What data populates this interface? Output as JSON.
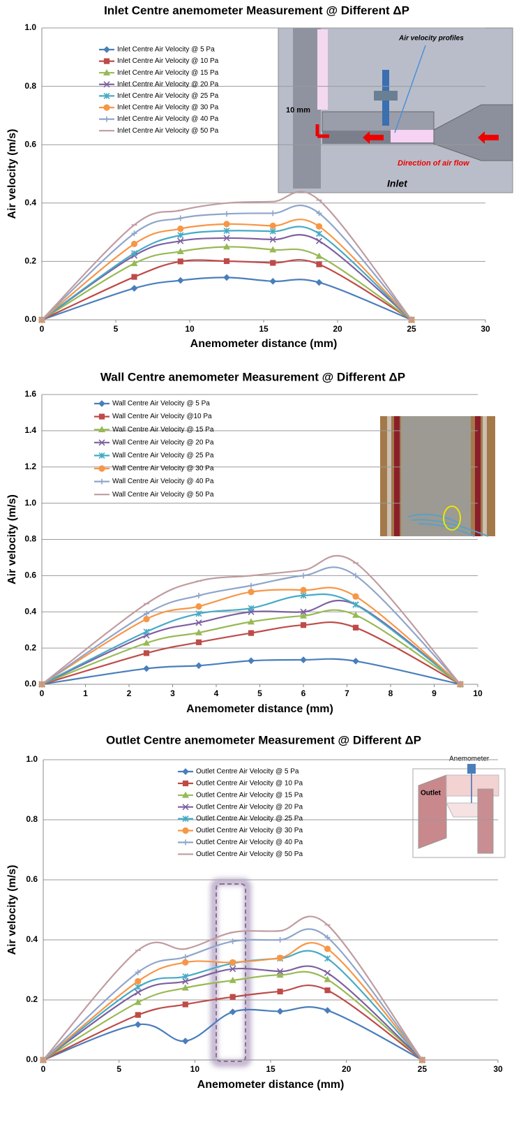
{
  "chart_data": [
    {
      "type": "line",
      "title": "Inlet Centre anemometer Measurement @ Different ΔP",
      "x_label": "Anemometer distance (mm)",
      "y_label": "Air velocity (m/s)",
      "x": [
        0,
        6.25,
        9.375,
        12.5,
        15.625,
        18.75,
        25
      ],
      "xlim": [
        0,
        30
      ],
      "xticks": [
        0,
        5,
        10,
        15,
        20,
        25,
        30
      ],
      "ylim": [
        0,
        1
      ],
      "yticks": [
        {
          "value": 0,
          "label": "0.0"
        },
        0.2,
        0.4,
        0.6,
        0.8,
        {
          "value": 1,
          "label": "1.0"
        }
      ],
      "grid": true,
      "legend": "upper left",
      "annotations": [
        "Air velocity profiles",
        "10 mm",
        "Direction of air flow",
        "Inlet"
      ],
      "series": [
        {
          "name": "Inlet Centre Air Velocity @ 5 Pa",
          "color": "#4a7ebb",
          "marker": "diamond",
          "values": [
            0,
            0.108,
            0.135,
            0.145,
            0.132,
            0.128,
            0
          ]
        },
        {
          "name": "Inlet Centre Air Velocity @ 10 Pa",
          "color": "#be4b48",
          "marker": "square",
          "values": [
            0,
            0.147,
            0.2,
            0.201,
            0.195,
            0.19,
            0
          ]
        },
        {
          "name": "Inlet Centre Air Velocity @ 15 Pa",
          "color": "#98b954",
          "marker": "triangle",
          "values": [
            0,
            0.193,
            0.234,
            0.25,
            0.24,
            0.218,
            0
          ]
        },
        {
          "name": "Inlet Centre Air Velocity @ 20 Pa",
          "color": "#7d60a0",
          "marker": "x",
          "values": [
            0,
            0.22,
            0.27,
            0.28,
            0.275,
            0.27,
            0
          ]
        },
        {
          "name": "Inlet Centre Air Velocity @ 25 Pa",
          "color": "#46aac5",
          "marker": "star",
          "values": [
            0,
            0.228,
            0.29,
            0.305,
            0.303,
            0.295,
            0
          ]
        },
        {
          "name": "Inlet Centre Air Velocity @ 30 Pa",
          "color": "#f79646",
          "marker": "circle",
          "values": [
            0,
            0.26,
            0.312,
            0.328,
            0.322,
            0.32,
            0
          ]
        },
        {
          "name": "Inlet Centre Air Velocity @ 40 Pa",
          "color": "#8ea5cb",
          "marker": "plus",
          "values": [
            0,
            0.296,
            0.348,
            0.363,
            0.365,
            0.365,
            0
          ]
        },
        {
          "name": "Inlet Centre Air Velocity @ 50 Pa",
          "color": "#c09ca0",
          "marker": "dash",
          "values": [
            0,
            0.325,
            0.375,
            0.4,
            0.405,
            0.41,
            0
          ]
        }
      ]
    },
    {
      "type": "line",
      "title": "Wall Centre anemometer Measurement @ Different ΔP",
      "x_label": "Anemometer distance (mm)",
      "y_label": "Air velocity (m/s)",
      "x": [
        0,
        2.4,
        3.6,
        4.8,
        6,
        7.2,
        9.6
      ],
      "xlim": [
        0,
        10
      ],
      "xticks": [
        0,
        1,
        2,
        3,
        4,
        5,
        6,
        7,
        8,
        9,
        10
      ],
      "ylim": [
        0,
        1.6
      ],
      "yticks": [
        {
          "value": 0,
          "label": "0.0"
        },
        0.2,
        0.4,
        0.6,
        0.8,
        {
          "value": 1,
          "label": "1.0"
        },
        1.2,
        1.4,
        1.6
      ],
      "grid": true,
      "legend": "upper left",
      "series": [
        {
          "name": "Wall Centre Air Velocity @ 5 Pa",
          "color": "#4a7ebb",
          "marker": "diamond",
          "values": [
            0,
            0.087,
            0.103,
            0.13,
            0.135,
            0.128,
            0
          ]
        },
        {
          "name": "Wall Centre Air Velocity @10 Pa",
          "color": "#be4b48",
          "marker": "square",
          "values": [
            0,
            0.172,
            0.232,
            0.283,
            0.327,
            0.313,
            0
          ]
        },
        {
          "name": "Wall Centre Air Velocity @ 15 Pa",
          "color": "#98b954",
          "marker": "triangle",
          "values": [
            0,
            0.228,
            0.285,
            0.345,
            0.378,
            0.382,
            0
          ]
        },
        {
          "name": "Wall Centre Air Velocity @ 20 Pa",
          "color": "#7d60a0",
          "marker": "x",
          "values": [
            0,
            0.27,
            0.34,
            0.4,
            0.4,
            0.44,
            0
          ]
        },
        {
          "name": "Wall Centre Air Velocity @ 25 Pa",
          "color": "#46aac5",
          "marker": "star",
          "values": [
            0,
            0.29,
            0.39,
            0.42,
            0.49,
            0.44,
            0
          ]
        },
        {
          "name": "Wall Centre Air Velocity @ 30 Pa",
          "color": "#f79646",
          "marker": "circle",
          "values": [
            0,
            0.36,
            0.43,
            0.51,
            0.52,
            0.485,
            0
          ]
        },
        {
          "name": "Wall Centre Air Velocity @ 40 Pa",
          "color": "#8ea5cb",
          "marker": "plus",
          "values": [
            0,
            0.39,
            0.49,
            0.545,
            0.6,
            0.6,
            0
          ]
        },
        {
          "name": "Wall Centre Air Velocity @ 50 Pa",
          "color": "#c09ca0",
          "marker": "dash",
          "values": [
            0,
            0.445,
            0.57,
            0.6,
            0.63,
            0.67,
            0
          ]
        }
      ]
    },
    {
      "type": "line",
      "title": "Outlet Centre anemometer Measurement @ Different ΔP",
      "x_label": "Anemometer distance (mm)",
      "y_label": "Air velocity (m/s)",
      "x": [
        0,
        6.25,
        9.375,
        12.5,
        15.625,
        18.75,
        25
      ],
      "xlim": [
        0,
        30
      ],
      "xticks": [
        0,
        5,
        10,
        15,
        20,
        25,
        30
      ],
      "ylim": [
        0,
        1
      ],
      "yticks": [
        {
          "value": 0,
          "label": "0.0"
        },
        0.2,
        0.4,
        0.6,
        0.8,
        {
          "value": 1,
          "label": "1.0"
        }
      ],
      "grid": true,
      "legend": "upper left",
      "annotations": [
        "Anemometer",
        "Outlet"
      ],
      "series": [
        {
          "name": "Outlet Centre Air Velocity @ 5 Pa",
          "color": "#4a7ebb",
          "marker": "diamond",
          "values": [
            0,
            0.118,
            0.063,
            0.16,
            0.162,
            0.165,
            0
          ]
        },
        {
          "name": "Outlet Centre Air Velocity @ 10 Pa",
          "color": "#be4b48",
          "marker": "square",
          "values": [
            0,
            0.15,
            0.185,
            0.21,
            0.228,
            0.232,
            0
          ]
        },
        {
          "name": "Outlet Centre Air Velocity @ 15 Pa",
          "color": "#98b954",
          "marker": "triangle",
          "values": [
            0,
            0.192,
            0.24,
            0.265,
            0.283,
            0.268,
            0
          ]
        },
        {
          "name": "Outlet Centre Air Velocity @ 20 Pa",
          "color": "#7d60a0",
          "marker": "x",
          "values": [
            0,
            0.225,
            0.262,
            0.303,
            0.295,
            0.29,
            0
          ]
        },
        {
          "name": "Outlet Centre Air Velocity @ 25 Pa",
          "color": "#46aac5",
          "marker": "star",
          "values": [
            0,
            0.243,
            0.278,
            0.322,
            0.338,
            0.338,
            0
          ]
        },
        {
          "name": "Outlet Centre Air Velocity @ 30 Pa",
          "color": "#f79646",
          "marker": "circle",
          "values": [
            0,
            0.262,
            0.325,
            0.325,
            0.34,
            0.37,
            0
          ]
        },
        {
          "name": "Outlet Centre Air Velocity @ 40 Pa",
          "color": "#8ea5cb",
          "marker": "plus",
          "values": [
            0,
            0.292,
            0.343,
            0.395,
            0.4,
            0.408,
            0
          ]
        },
        {
          "name": "Outlet Centre Air Velocity @ 50 Pa",
          "color": "#c09ca0",
          "marker": "dash",
          "values": [
            0,
            0.365,
            0.37,
            0.425,
            0.43,
            0.45,
            0
          ]
        }
      ]
    }
  ]
}
